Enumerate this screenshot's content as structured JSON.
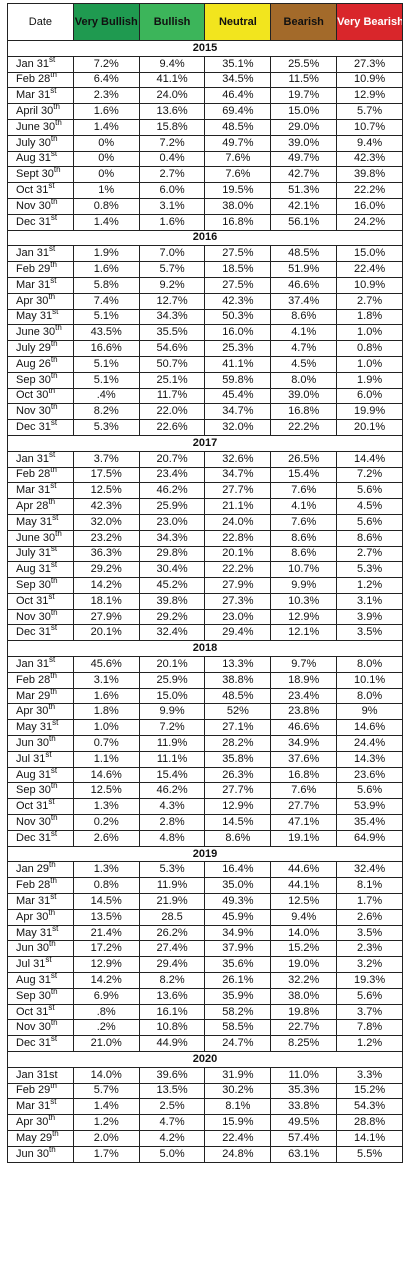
{
  "header": [
    "Date",
    "Very Bullish",
    "Bullish",
    "Neutral",
    "Bearish",
    "Very Bearish"
  ],
  "sections": [
    {
      "year": "2015",
      "rows": [
        {
          "date": "Jan 31",
          "suffix": "st",
          "cells": [
            "7.2%",
            "9.4%",
            "35.1%",
            "25.5%",
            "27.3%"
          ]
        },
        {
          "date": "Feb 28",
          "suffix": "th",
          "cells": [
            "6.4%",
            "41.1%",
            "34.5%",
            "11.5%",
            "10.9%"
          ]
        },
        {
          "date": "Mar 31",
          "suffix": "st",
          "cells": [
            "2.3%",
            "24.0%",
            "46.4%",
            "19.7%",
            "12.9%"
          ]
        },
        {
          "date": "April 30",
          "suffix": "th",
          "cells": [
            "1.6%",
            "13.6%",
            "69.4%",
            "15.0%",
            "5.7%"
          ]
        },
        {
          "date": "June 30",
          "suffix": "th",
          "cells": [
            "1.4%",
            "15.8%",
            "48.5%",
            "29.0%",
            "10.7%"
          ]
        },
        {
          "date": "July 30",
          "suffix": "th",
          "cells": [
            "0%",
            "7.2%",
            "49.7%",
            "39.0%",
            "9.4%"
          ]
        },
        {
          "date": "Aug 31",
          "suffix": "st",
          "cells": [
            "0%",
            "0.4%",
            "7.6%",
            "49.7%",
            "42.3%"
          ]
        },
        {
          "date": "Sept 30",
          "suffix": "th",
          "cells": [
            "0%",
            "2.7%",
            "7.6%",
            "42.7%",
            "39.8%"
          ]
        },
        {
          "date": "Oct 31",
          "suffix": "st",
          "cells": [
            "1%",
            "6.0%",
            "19.5%",
            "51.3%",
            "22.2%"
          ]
        },
        {
          "date": "Nov 30",
          "suffix": "th",
          "cells": [
            "0.8%",
            "3.1%",
            "38.0%",
            "42.1%",
            "16.0%"
          ]
        },
        {
          "date": "Dec 31",
          "suffix": "st",
          "cells": [
            "1.4%",
            "1.6%",
            "16.8%",
            "56.1%",
            "24.2%"
          ]
        }
      ]
    },
    {
      "year": "2016",
      "rows": [
        {
          "date": "Jan 31",
          "suffix": "st",
          "cells": [
            "1.9%",
            "7.0%",
            "27.5%",
            "48.5%",
            "15.0%"
          ]
        },
        {
          "date": "Feb 29",
          "suffix": "th",
          "cells": [
            "1.6%",
            "5.7%",
            "18.5%",
            "51.9%",
            "22.4%"
          ]
        },
        {
          "date": "Mar 31",
          "suffix": "st",
          "cells": [
            "5.8%",
            "9.2%",
            "27.5%",
            "46.6%",
            "10.9%"
          ]
        },
        {
          "date": "Apr 30",
          "suffix": "th",
          "cells": [
            "7.4%",
            "12.7%",
            "42.3%",
            "37.4%",
            "2.7%"
          ]
        },
        {
          "date": "May 31",
          "suffix": "st",
          "cells": [
            "5.1%",
            "34.3%",
            "50.3%",
            "8.6%",
            "1.8%"
          ]
        },
        {
          "date": "June 30",
          "suffix": "th",
          "cells": [
            "43.5%",
            "35.5%",
            "16.0%",
            "4.1%",
            "1.0%"
          ]
        },
        {
          "date": "July 29",
          "suffix": "th",
          "cells": [
            "16.6%",
            "54.6%",
            "25.3%",
            "4.7%",
            "0.8%"
          ]
        },
        {
          "date": "Aug 26",
          "suffix": "th",
          "cells": [
            "5.1%",
            "50.7%",
            "41.1%",
            "4.5%",
            "1.0%"
          ]
        },
        {
          "date": "Sep 30",
          "suffix": "th",
          "cells": [
            "5.1%",
            "25.1%",
            "59.8%",
            "8.0%",
            "1.9%"
          ]
        },
        {
          "date": "Oct 30",
          "suffix": "th",
          "cells": [
            ".4%",
            "11.7%",
            "45.4%",
            "39.0%",
            "6.0%"
          ]
        },
        {
          "date": "Nov 30",
          "suffix": "th",
          "cells": [
            "8.2%",
            "22.0%",
            "34.7%",
            "16.8%",
            "19.9%"
          ]
        },
        {
          "date": "Dec 31",
          "suffix": "st",
          "cells": [
            "5.3%",
            "22.6%",
            "32.0%",
            "22.2%",
            "20.1%"
          ]
        }
      ]
    },
    {
      "year": "2017",
      "rows": [
        {
          "date": "Jan 31",
          "suffix": "st",
          "cells": [
            "3.7%",
            "20.7%",
            "32.6%",
            "26.5%",
            "14.4%"
          ]
        },
        {
          "date": "Feb 28",
          "suffix": "th",
          "cells": [
            "17.5%",
            "23.4%",
            "34.7%",
            "15.4%",
            "7.2%"
          ]
        },
        {
          "date": "Mar 31",
          "suffix": "st",
          "cells": [
            "12.5%",
            "46.2%",
            "27.7%",
            "7.6%",
            "5.6%"
          ]
        },
        {
          "date": "Apr 28",
          "suffix": "th",
          "cells": [
            "42.3%",
            "25.9%",
            "21.1%",
            "4.1%",
            "4.5%"
          ]
        },
        {
          "date": "May 31",
          "suffix": "st",
          "cells": [
            "32.0%",
            "23.0%",
            "24.0%",
            "7.6%",
            "5.6%"
          ]
        },
        {
          "date": "June 30",
          "suffix": "th",
          "cells": [
            "23.2%",
            "34.3%",
            "22.8%",
            "8.6%",
            "8.6%"
          ]
        },
        {
          "date": "July 31",
          "suffix": "st",
          "cells": [
            "36.3%",
            "29.8%",
            "20.1%",
            "8.6%",
            "2.7%"
          ]
        },
        {
          "date": "Aug 31",
          "suffix": "st",
          "cells": [
            "29.2%",
            "30.4%",
            "22.2%",
            "10.7%",
            "5.3%"
          ]
        },
        {
          "date": "Sep 30",
          "suffix": "th",
          "cells": [
            "14.2%",
            "45.2%",
            "27.9%",
            "9.9%",
            "1.2%"
          ]
        },
        {
          "date": "Oct 31",
          "suffix": "st",
          "cells": [
            "18.1%",
            "39.8%",
            "27.3%",
            "10.3%",
            "3.1%"
          ]
        },
        {
          "date": "Nov 30",
          "suffix": "th",
          "cells": [
            "27.9%",
            "29.2%",
            "23.0%",
            "12.9%",
            "3.9%"
          ]
        },
        {
          "date": "Dec 31",
          "suffix": "st",
          "cells": [
            "20.1%",
            "32.4%",
            "29.4%",
            "12.1%",
            "3.5%"
          ]
        }
      ]
    },
    {
      "year": "2018",
      "rows": [
        {
          "date": "Jan 31",
          "suffix": "st",
          "cells": [
            "45.6%",
            "20.1%",
            "13.3%",
            "9.7%",
            "8.0%"
          ]
        },
        {
          "date": "Feb 28",
          "suffix": "th",
          "cells": [
            "3.1%",
            "25.9%",
            "38.8%",
            "18.9%",
            "10.1%"
          ]
        },
        {
          "date": "Mar 29",
          "suffix": "th",
          "cells": [
            "1.6%",
            "15.0%",
            "48.5%",
            "23.4%",
            "8.0%"
          ]
        },
        {
          "date": "Apr 30",
          "suffix": "th",
          "cells": [
            "1.8%",
            "9.9%",
            "52%",
            "23.8%",
            "9%"
          ]
        },
        {
          "date": "May 31",
          "suffix": "st",
          "cells": [
            "1.0%",
            "7.2%",
            "27.1%",
            "46.6%",
            "14.6%"
          ]
        },
        {
          "date": "Jun 30",
          "suffix": "th",
          "cells": [
            "0.7%",
            "11.9%",
            "28.2%",
            "34.9%",
            "24.4%"
          ]
        },
        {
          "date": "Jul 31",
          "suffix": "st",
          "cells": [
            "1.1%",
            "11.1%",
            "35.8%",
            "37.6%",
            "14.3%"
          ]
        },
        {
          "date": "Aug 31",
          "suffix": "st",
          "cells": [
            "14.6%",
            "15.4%",
            "26.3%",
            "16.8%",
            "23.6%"
          ]
        },
        {
          "date": "Sep 30",
          "suffix": "th",
          "cells": [
            "12.5%",
            "46.2%",
            "27.7%",
            "7.6%",
            "5.6%"
          ]
        },
        {
          "date": "Oct 31",
          "suffix": "st",
          "cells": [
            "1.3%",
            "4.3%",
            "12.9%",
            "27.7%",
            "53.9%"
          ]
        },
        {
          "date": "Nov 30",
          "suffix": "th",
          "cells": [
            "0.2%",
            "2.8%",
            "14.5%",
            "47.1%",
            "35.4%"
          ]
        },
        {
          "date": "Dec 31",
          "suffix": "st",
          "cells": [
            "2.6%",
            "4.8%",
            "8.6%",
            "19.1%",
            "64.9%"
          ]
        }
      ]
    },
    {
      "year": "2019",
      "rows": [
        {
          "date": "Jan 29",
          "suffix": "th",
          "cells": [
            "1.3%",
            "5.3%",
            "16.4%",
            "44.6%",
            "32.4%"
          ]
        },
        {
          "date": "Feb 28",
          "suffix": "th",
          "cells": [
            "0.8%",
            "11.9%",
            "35.0%",
            "44.1%",
            "8.1%"
          ]
        },
        {
          "date": "Mar 31",
          "suffix": "st",
          "cells": [
            "14.5%",
            "21.9%",
            "49.3%",
            "12.5%",
            "1.7%"
          ]
        },
        {
          "date": "Apr 30",
          "suffix": "th",
          "cells": [
            "13.5%",
            "28.5",
            "45.9%",
            "9.4%",
            "2.6%"
          ]
        },
        {
          "date": "May 31",
          "suffix": "st",
          "cells": [
            "21.4%",
            "26.2%",
            "34.9%",
            "14.0%",
            "3.5%"
          ]
        },
        {
          "date": "Jun 30",
          "suffix": "th",
          "cells": [
            "17.2%",
            "27.4%",
            "37.9%",
            "15.2%",
            "2.3%"
          ]
        },
        {
          "date": "Jul 31",
          "suffix": "st",
          "cells": [
            "12.9%",
            "29.4%",
            "35.6%",
            "19.0%",
            "3.2%"
          ]
        },
        {
          "date": "Aug 31",
          "suffix": "st",
          "cells": [
            "14.2%",
            "8.2%",
            "26.1%",
            "32.2%",
            "19.3%"
          ]
        },
        {
          "date": "Sep 30",
          "suffix": "th",
          "cells": [
            "6.9%",
            "13.6%",
            "35.9%",
            "38.0%",
            "5.6%"
          ]
        },
        {
          "date": "Oct 31",
          "suffix": "st",
          "cells": [
            ".8%",
            "16.1%",
            "58.2%",
            "19.8%",
            "3.7%"
          ]
        },
        {
          "date": "Nov 30",
          "suffix": "th",
          "cells": [
            ".2%",
            "10.8%",
            "58.5%",
            "22.7%",
            "7.8%"
          ]
        },
        {
          "date": "Dec 31",
          "suffix": "st",
          "cells": [
            "21.0%",
            "44.9%",
            "24.7%",
            "8.25%",
            "1.2%"
          ]
        }
      ]
    },
    {
      "year": "2020",
      "rows": [
        {
          "date": "Jan 31st",
          "cells": [
            "14.0%",
            "39.6%",
            "31.9%",
            "11.0%",
            "3.3%"
          ]
        },
        {
          "date": "Feb 29",
          "suffix": "th",
          "cells": [
            "5.7%",
            "13.5%",
            "30.2%",
            "35.3%",
            "15.2%"
          ]
        },
        {
          "date": "Mar 31",
          "suffix": "st",
          "cells": [
            "1.4%",
            "2.5%",
            "8.1%",
            "33.8%",
            "54.3%"
          ]
        },
        {
          "date": "Apr 30",
          "suffix": "th",
          "cells": [
            "1.2%",
            "4.7%",
            "15.9%",
            "49.5%",
            "28.8%"
          ]
        },
        {
          "date": "May 29",
          "suffix": "th",
          "cells": [
            "2.0%",
            "4.2%",
            "22.4%",
            "57.4%",
            "14.1%"
          ]
        },
        {
          "date": "Jun 30",
          "suffix": "th",
          "cells": [
            "1.7%",
            "5.0%",
            "24.8%",
            "63.1%",
            "5.5%"
          ]
        }
      ]
    }
  ]
}
